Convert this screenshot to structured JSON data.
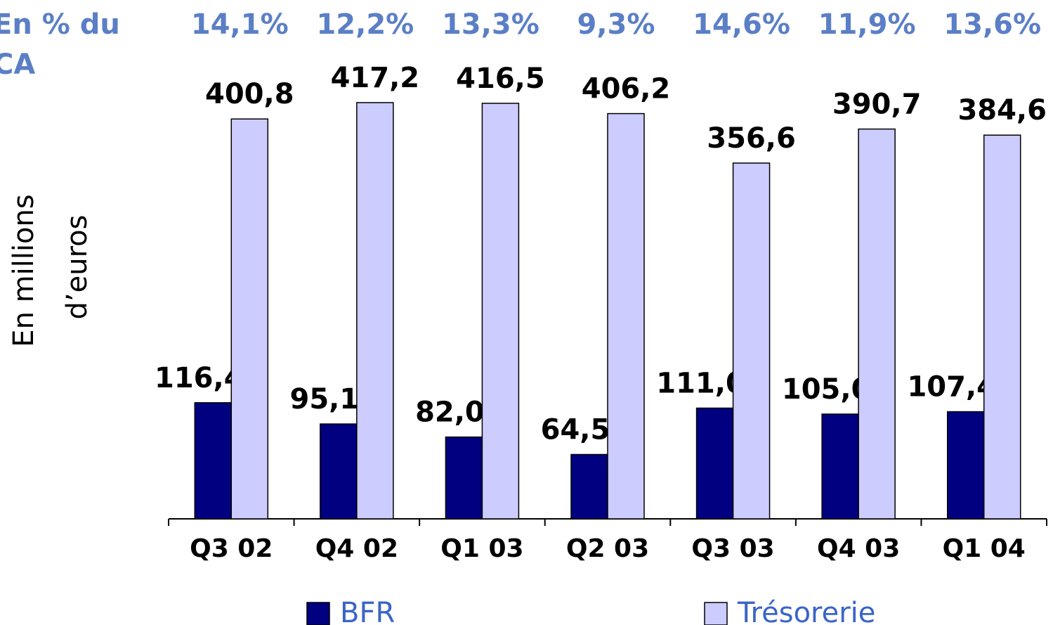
{
  "chart_data": {
    "type": "bar",
    "annotation": [
      "En % du",
      "CA"
    ],
    "pct_of_revenue": {
      "values": [
        14.1,
        12.2,
        13.3,
        9.3,
        14.6,
        11.9,
        13.6
      ],
      "value_labels": [
        "14,1%",
        "12,2%",
        "13,3%",
        "9,3%",
        "14,6%",
        "11,9%",
        "13,6%"
      ]
    },
    "y_label": [
      "En millions",
      "d’euros"
    ],
    "categories": [
      "Q3 02",
      "Q4 02",
      "Q1 03",
      "Q2 03",
      "Q3 03",
      "Q4 03",
      "Q1 04"
    ],
    "series": [
      {
        "name": "BFR",
        "color": "#000080",
        "values": [
          116.4,
          95.1,
          82.0,
          64.5,
          111.0,
          105.0,
          107.4
        ],
        "value_labels": [
          "116,4",
          "95,1",
          "82,0",
          "64,5",
          "111,0",
          "105,0",
          "107,4"
        ]
      },
      {
        "name": "Trésorerie",
        "color": "#ccccff",
        "values": [
          400.8,
          417.2,
          416.5,
          406.2,
          356.6,
          390.7,
          384.6
        ],
        "value_labels": [
          "400,8",
          "417,2",
          "416,5",
          "406,2",
          "356,6",
          "390,7",
          "384,6"
        ]
      }
    ],
    "ylim": [
      0,
      450
    ]
  }
}
